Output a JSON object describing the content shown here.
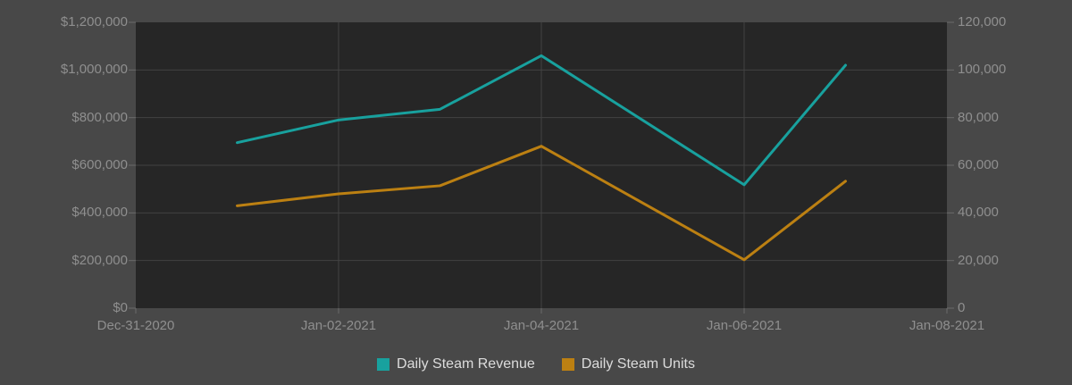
{
  "chart_data": {
    "type": "line",
    "title": "",
    "grid": true,
    "legend_position": "bottom",
    "x_axis": {
      "tick_labels": [
        "Dec-31-2020",
        "Jan-02-2021",
        "Jan-04-2021",
        "Jan-06-2021",
        "Jan-08-2021"
      ],
      "tick_days": [
        0,
        2,
        4,
        6,
        8
      ],
      "domain_days": [
        0,
        8
      ]
    },
    "y_axis_left": {
      "tick_labels": [
        "$0",
        "$200,000",
        "$400,000",
        "$600,000",
        "$800,000",
        "$1,000,000",
        "$1,200,000"
      ],
      "tick_values": [
        0,
        200000,
        400000,
        600000,
        800000,
        1000000,
        1200000
      ],
      "range": [
        0,
        1200000
      ]
    },
    "y_axis_right": {
      "tick_labels": [
        "0",
        "20,000",
        "40,000",
        "60,000",
        "80,000",
        "100,000",
        "120,000"
      ],
      "tick_values": [
        0,
        20000,
        40000,
        60000,
        80000,
        100000,
        120000
      ],
      "range": [
        0,
        120000
      ]
    },
    "series": [
      {
        "name": "Daily Steam Revenue",
        "axis": "left",
        "color": "#18A19E",
        "dates": [
          "Jan-01-2021",
          "Jan-02-2021",
          "Jan-03-2021",
          "Jan-04-2021",
          "Jan-06-2021",
          "Jan-07-2021"
        ],
        "x_days": [
          1,
          2,
          3,
          4,
          6,
          7
        ],
        "values": [
          695000,
          790000,
          835000,
          1060000,
          518000,
          1020000
        ]
      },
      {
        "name": "Daily Steam Units",
        "axis": "right",
        "color": "#BC8012",
        "dates": [
          "Jan-01-2021",
          "Jan-02-2021",
          "Jan-03-2021",
          "Jan-04-2021",
          "Jan-06-2021",
          "Jan-07-2021"
        ],
        "x_days": [
          1,
          2,
          3,
          4,
          6,
          7
        ],
        "values": [
          43000,
          48000,
          51400,
          68000,
          20300,
          53300
        ]
      }
    ]
  },
  "legend": {
    "items": [
      {
        "label": "Daily Steam Revenue",
        "color": "#18A19E"
      },
      {
        "label": "Daily Steam Units",
        "color": "#BC8012"
      }
    ]
  },
  "colors": {
    "background": "#484848",
    "plot_background": "#262626",
    "gridline": "#424242",
    "tick": "#6a6a6a",
    "axis_text": "#8f8f8f",
    "legend_text": "#dcdcdc"
  }
}
